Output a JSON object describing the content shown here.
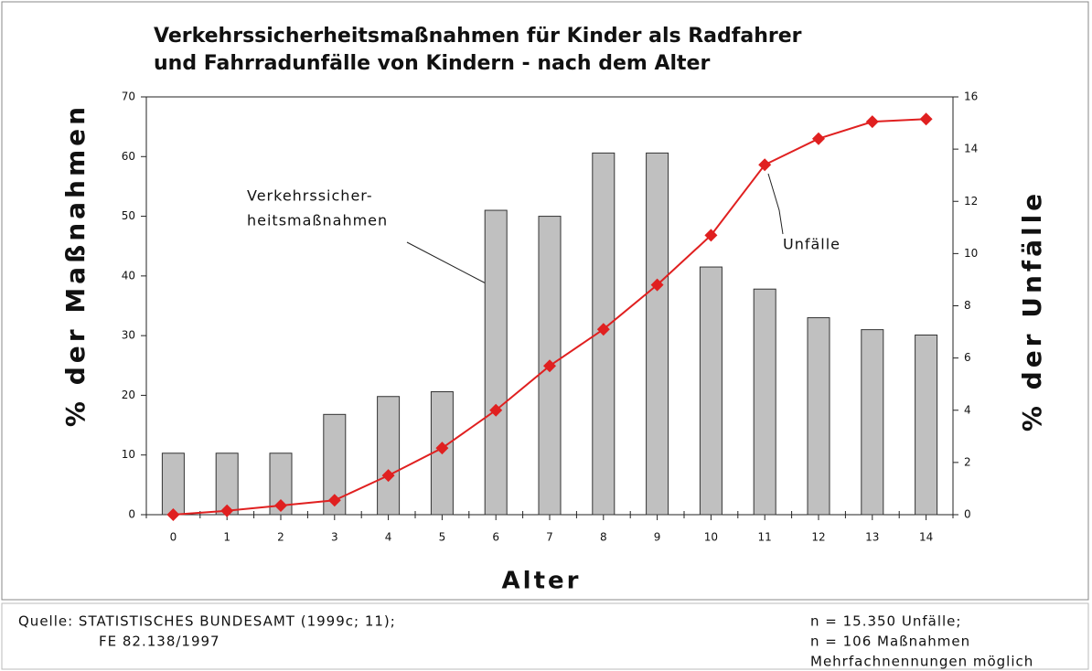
{
  "chart_data": {
    "type": "bar-line",
    "title": [
      "Verkehrssicherheitsmaßnahmen für Kinder als Radfahrer",
      "und Fahrradunfälle von Kindern - nach dem Alter"
    ],
    "xlabel": "Alter",
    "ylabel": "% der Maßnahmen",
    "y2label": "% der Unfälle",
    "categories": [
      "0",
      "1",
      "2",
      "3",
      "4",
      "5",
      "6",
      "7",
      "8",
      "9",
      "10",
      "11",
      "12",
      "13",
      "14"
    ],
    "series": [
      {
        "type": "bar",
        "color": "#c0c0c0",
        "values": [
          10.3,
          10.3,
          10.3,
          16.8,
          19.8,
          20.6,
          51,
          50,
          60.6,
          60.6,
          41.5,
          37.8,
          33,
          31,
          30.1
        ]
      },
      {
        "type": "line",
        "color": "#e02020",
        "axis": "y2",
        "values": [
          0,
          0.15,
          0.35,
          0.55,
          1.5,
          2.55,
          4.0,
          5.7,
          7.1,
          8.8,
          10.7,
          13.4,
          14.4,
          15.05,
          15.15
        ]
      }
    ],
    "annotations": [
      [
        "Verkehrssicher-",
        "heitsmaßnahmen"
      ],
      [
        "Unfälle"
      ]
    ],
    "ylim": [
      0,
      70
    ],
    "yticks": [
      0,
      10,
      20,
      30,
      40,
      50,
      60,
      70
    ],
    "y2lim": [
      0,
      16
    ],
    "y2ticks": [
      0,
      2,
      4,
      6,
      8,
      10,
      12,
      14,
      16
    ],
    "footer": {
      "source": [
        "Quelle: STATISTISCHES BUNDESAMT (1999c; 11);",
        "FE 82.138/1997"
      ],
      "notes": [
        "n =  15.350 Unfälle;",
        "n = 106 Maßnahmen",
        "Mehrfachnennungen möglich"
      ]
    }
  }
}
